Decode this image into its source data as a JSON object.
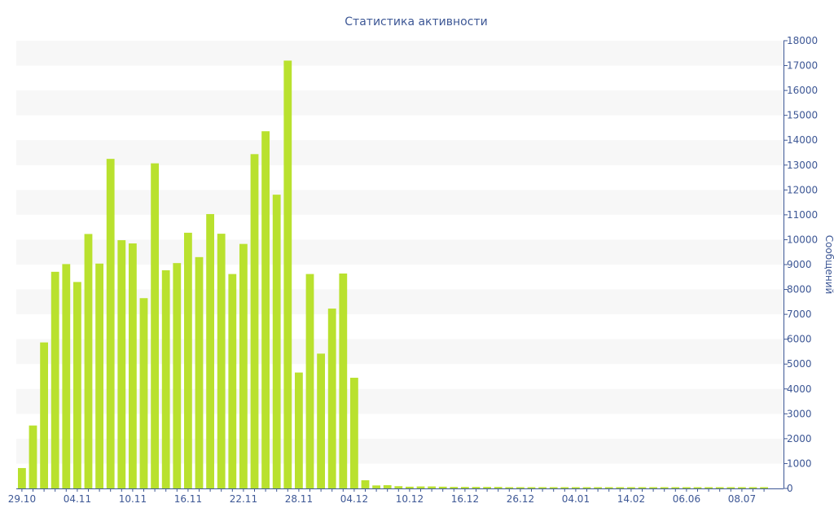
{
  "chart_data": {
    "type": "bar",
    "title": "Статистика активности",
    "ylabel": "Сообщений",
    "ylim": [
      0,
      18000
    ],
    "y_ticks": [
      0,
      1000,
      2000,
      3000,
      4000,
      5000,
      6000,
      7000,
      8000,
      9000,
      10000,
      11000,
      12000,
      13000,
      14000,
      15000,
      16000,
      17000,
      18000
    ],
    "x_tick_labels": [
      "29.10",
      "04.11",
      "10.11",
      "16.11",
      "22.11",
      "28.11",
      "04.12",
      "10.12",
      "16.12",
      "26.12",
      "04.01",
      "14.02",
      "06.06",
      "08.07"
    ],
    "x_tick_every": 5,
    "y_axis_position": "right",
    "grid": "alternating-bands",
    "bar_color": "#b9e12e",
    "band_color": "#f7f7f7",
    "text_color": "#3d5795",
    "values": [
      820,
      2530,
      5870,
      8710,
      9020,
      8300,
      10230,
      9040,
      13250,
      9980,
      9850,
      7650,
      13070,
      8770,
      9060,
      10280,
      9300,
      11030,
      10240,
      8620,
      9830,
      13440,
      14360,
      11810,
      17200,
      4660,
      8620,
      5420,
      7230,
      8640,
      4450,
      330,
      120,
      130,
      90,
      70,
      80,
      80,
      70,
      60,
      60,
      60,
      60,
      60,
      50,
      50,
      50,
      50,
      50,
      50,
      50,
      50,
      50,
      50,
      50,
      50,
      50,
      50,
      50,
      50,
      50,
      50,
      50,
      50,
      50,
      50,
      50,
      50
    ]
  }
}
